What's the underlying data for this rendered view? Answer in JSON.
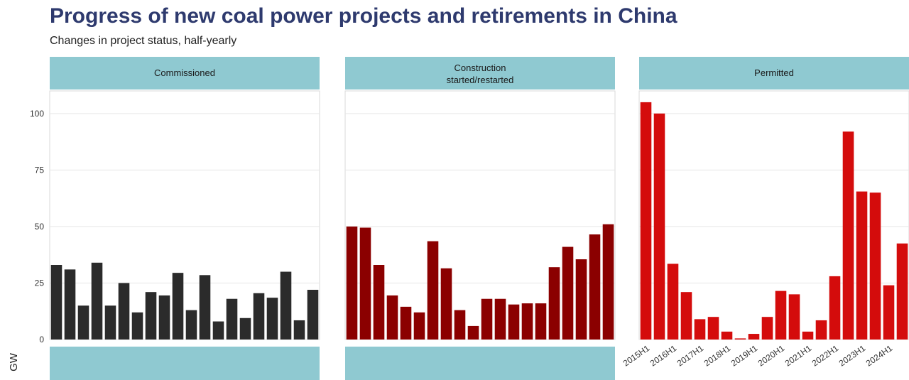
{
  "chart_data": {
    "type": "bar",
    "title": "Progress of new coal power projects and retirements in China",
    "subtitle": "Changes in project status, half-yearly",
    "ylabel": "GW",
    "ylim": [
      0,
      110
    ],
    "yticks": [
      "0",
      "25",
      "50",
      "75",
      "100"
    ],
    "x_tick_labels": [
      "2015H1",
      "2016H1",
      "2017H1",
      "2018H1",
      "2019H1",
      "2020H1",
      "2021H1",
      "2022H1",
      "2023H1",
      "2024H1"
    ],
    "categories": [
      "2015H1",
      "2015H2",
      "2016H1",
      "2016H2",
      "2017H1",
      "2017H2",
      "2018H1",
      "2018H2",
      "2019H1",
      "2019H2",
      "2020H1",
      "2020H2",
      "2021H1",
      "2021H2",
      "2022H1",
      "2022H2",
      "2023H1",
      "2023H2",
      "2024H1",
      "2024H2"
    ],
    "panels": [
      {
        "label": "Commissioned",
        "color": "#2b2b2b",
        "values": [
          33,
          31,
          15,
          34,
          15,
          25,
          12,
          21,
          19.5,
          29.5,
          13,
          28.5,
          8,
          18,
          9.5,
          20.5,
          18.5,
          30,
          8.5,
          22
        ]
      },
      {
        "label": "Construction started/restarted",
        "color": "#8b0000",
        "values": [
          50,
          49.5,
          33,
          19.5,
          14.5,
          12,
          43.5,
          31.5,
          13,
          6,
          18,
          18,
          15.5,
          16,
          16,
          32,
          41,
          35.5,
          46.5,
          51
        ]
      },
      {
        "label": "Permitted",
        "color": "#d40c0c",
        "values": [
          105,
          100,
          33.5,
          21,
          9,
          10,
          3.5,
          0.5,
          2.5,
          10,
          21.5,
          20,
          3.5,
          8.5,
          28,
          92,
          65.5,
          65,
          24,
          42.5
        ]
      }
    ],
    "strip_color": "#8fc9d1",
    "grid": true
  }
}
